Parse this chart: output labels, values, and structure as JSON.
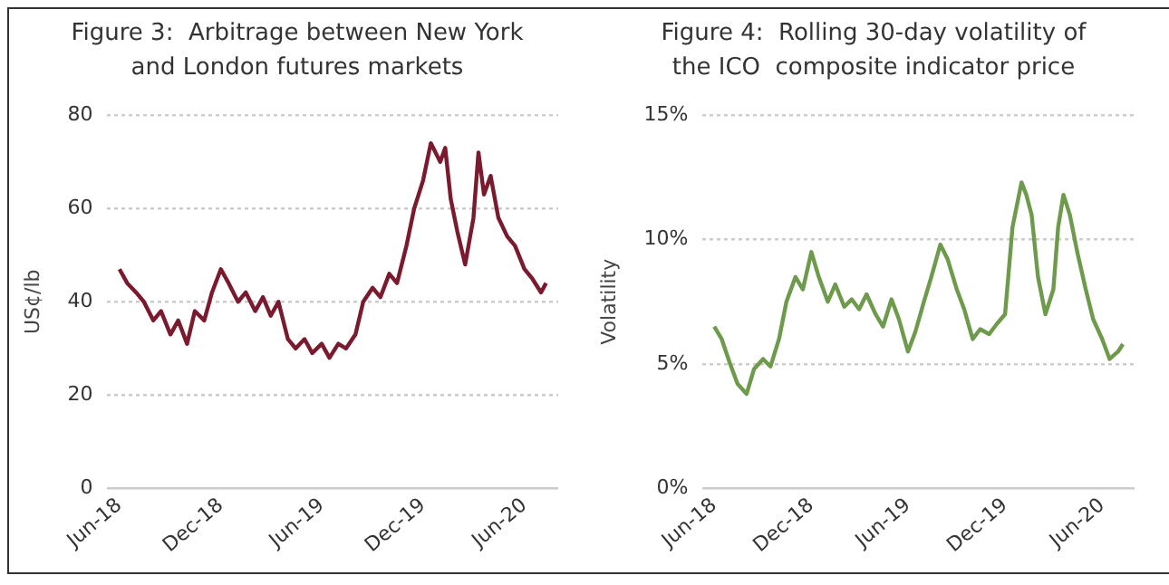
{
  "chart_data": [
    {
      "type": "line",
      "title": "Figure 3:  Arbitrage between New York and London futures markets",
      "ylabel": "US¢/lb",
      "xlim": [
        "2018-05-10",
        "2020-08-01"
      ],
      "xticks": [
        {
          "value": "2018-06-01",
          "label": "Jun-18"
        },
        {
          "value": "2018-12-01",
          "label": "Dec-18"
        },
        {
          "value": "2019-06-01",
          "label": "Jun-19"
        },
        {
          "value": "2019-12-01",
          "label": "Dec-19"
        },
        {
          "value": "2020-06-01",
          "label": "Jun-20"
        }
      ],
      "ylim": [
        0,
        80
      ],
      "yticks": [
        0,
        20,
        40,
        60,
        80
      ],
      "grid": "y",
      "series": [
        {
          "color": "#7b1a2e",
          "x": [
            "2018-06-01",
            "2018-06-15",
            "2018-07-01",
            "2018-07-15",
            "2018-08-01",
            "2018-08-15",
            "2018-09-01",
            "2018-09-15",
            "2018-10-01",
            "2018-10-15",
            "2018-11-01",
            "2018-11-15",
            "2018-12-01",
            "2018-12-15",
            "2019-01-01",
            "2019-01-15",
            "2019-02-01",
            "2019-02-15",
            "2019-03-01",
            "2019-03-15",
            "2019-04-01",
            "2019-04-15",
            "2019-05-01",
            "2019-05-15",
            "2019-06-01",
            "2019-06-15",
            "2019-07-01",
            "2019-07-15",
            "2019-08-01",
            "2019-08-15",
            "2019-09-01",
            "2019-09-15",
            "2019-10-01",
            "2019-10-15",
            "2019-11-01",
            "2019-11-15",
            "2019-12-01",
            "2019-12-15",
            "2020-01-01",
            "2020-01-10",
            "2020-01-20",
            "2020-02-01",
            "2020-02-15",
            "2020-03-01",
            "2020-03-10",
            "2020-03-20",
            "2020-04-01",
            "2020-04-15",
            "2020-05-01",
            "2020-05-15",
            "2020-06-01",
            "2020-06-15",
            "2020-07-01",
            "2020-07-10"
          ],
          "values": [
            47,
            44,
            42,
            40,
            36,
            38,
            33,
            36,
            31,
            38,
            36,
            42,
            47,
            44,
            40,
            42,
            38,
            41,
            37,
            40,
            32,
            30,
            32,
            29,
            31,
            28,
            31,
            30,
            33,
            40,
            43,
            41,
            46,
            44,
            52,
            60,
            66,
            74,
            70,
            73,
            62,
            55,
            48,
            58,
            72,
            63,
            67,
            58,
            54,
            52,
            47,
            45,
            42,
            44
          ]
        }
      ]
    },
    {
      "type": "line",
      "title": "Figure 4:  Rolling 30-day volatility of the ICO  composite indicator price",
      "ylabel": "Volatility",
      "xlim": [
        "2018-05-10",
        "2020-08-01"
      ],
      "xticks": [
        {
          "value": "2018-06-01",
          "label": "Jun-18"
        },
        {
          "value": "2018-12-01",
          "label": "Dec-18"
        },
        {
          "value": "2019-06-01",
          "label": "Jun-19"
        },
        {
          "value": "2019-12-01",
          "label": "Dec-19"
        },
        {
          "value": "2020-06-01",
          "label": "Jun-20"
        }
      ],
      "ylim": [
        0,
        15
      ],
      "yticks": [
        {
          "value": 0,
          "label": "0%"
        },
        {
          "value": 5,
          "label": "5%"
        },
        {
          "value": 10,
          "label": "10%"
        },
        {
          "value": 15,
          "label": "15%"
        }
      ],
      "grid": "y",
      "series": [
        {
          "color": "#6e9a4c",
          "x": [
            "2018-06-01",
            "2018-06-15",
            "2018-07-01",
            "2018-07-15",
            "2018-08-01",
            "2018-08-15",
            "2018-09-01",
            "2018-09-15",
            "2018-10-01",
            "2018-10-15",
            "2018-11-01",
            "2018-11-15",
            "2018-12-01",
            "2018-12-15",
            "2019-01-01",
            "2019-01-15",
            "2019-02-01",
            "2019-02-15",
            "2019-03-01",
            "2019-03-15",
            "2019-04-01",
            "2019-04-15",
            "2019-05-01",
            "2019-05-15",
            "2019-06-01",
            "2019-06-15",
            "2019-07-01",
            "2019-07-15",
            "2019-08-01",
            "2019-08-15",
            "2019-09-01",
            "2019-09-15",
            "2019-10-01",
            "2019-10-15",
            "2019-11-01",
            "2019-11-15",
            "2019-12-01",
            "2019-12-15",
            "2020-01-01",
            "2020-01-10",
            "2020-01-20",
            "2020-02-01",
            "2020-02-15",
            "2020-03-01",
            "2020-03-10",
            "2020-03-20",
            "2020-04-01",
            "2020-04-15",
            "2020-05-01",
            "2020-05-15",
            "2020-06-01",
            "2020-06-15",
            "2020-07-01",
            "2020-07-10"
          ],
          "values": [
            6.5,
            6,
            5,
            4.2,
            3.8,
            4.8,
            5.2,
            4.9,
            6,
            7.5,
            8.5,
            8,
            9.5,
            8.5,
            7.5,
            8.2,
            7.3,
            7.6,
            7.2,
            7.8,
            7,
            6.5,
            7.6,
            6.8,
            5.5,
            6.3,
            7.5,
            8.5,
            9.8,
            9.2,
            8,
            7.2,
            6,
            6.4,
            6.2,
            6.6,
            7,
            10.5,
            12.3,
            11.8,
            11,
            8.5,
            7,
            8,
            10.5,
            11.8,
            11,
            9.5,
            8,
            6.8,
            6,
            5.2,
            5.5,
            5.8
          ]
        }
      ]
    }
  ]
}
